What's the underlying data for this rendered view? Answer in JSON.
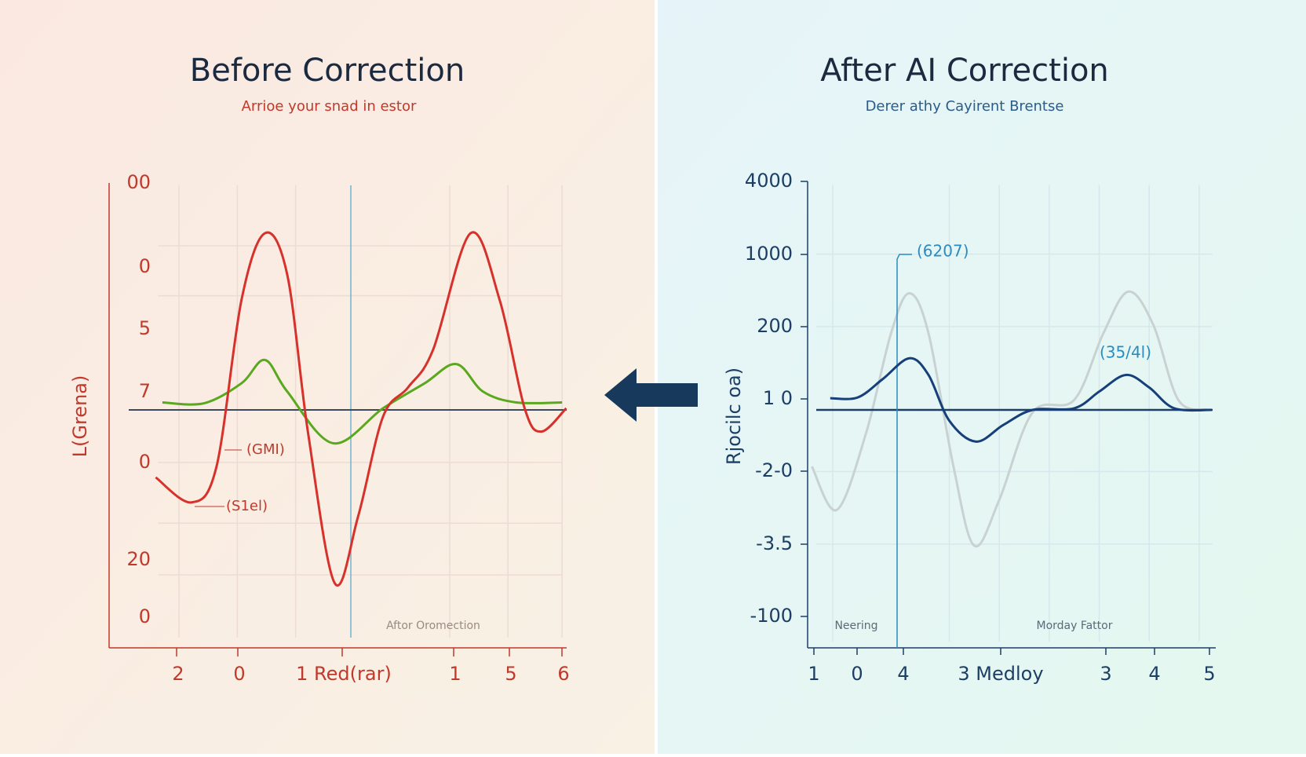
{
  "left_panel": {
    "title": "Before Correction",
    "subtitle": "Arrioe your snad in estor",
    "y_axis_label": "L(Grena)",
    "y_tick_labels": [
      "00",
      "0",
      "5",
      "7",
      "0",
      "20",
      "0"
    ],
    "x_tick_labels": [
      "2",
      "0",
      "1 Red(rar)",
      "1",
      "5",
      "6"
    ],
    "annotations": [
      "(GMI)",
      "(S1el)"
    ],
    "footer_label": "Aftor Oromection"
  },
  "right_panel": {
    "title": "After AI Correction",
    "subtitle": "Derer athy Cayirent Brentse",
    "y_axis_label": "Rjocilc oa)",
    "y_tick_labels": [
      "4000",
      "1000",
      "200",
      "1 0",
      "-2-0",
      "-3.5",
      "-100"
    ],
    "x_tick_labels": [
      "1",
      "0",
      "4",
      "3 Medloy",
      "3",
      "4",
      "5"
    ],
    "annotations": [
      "(6207)",
      "(35/4l)"
    ],
    "footer_labels": [
      "Neering",
      "Morday Fattor"
    ]
  }
}
